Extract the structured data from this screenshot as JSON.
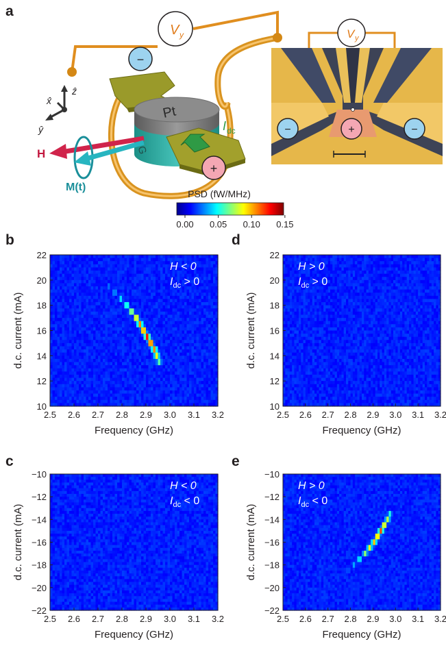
{
  "panel_labels": [
    "a",
    "b",
    "c",
    "d",
    "e"
  ],
  "schematic": {
    "voltage_label": "V",
    "voltage_subscript": "y",
    "current_label": "I",
    "current_subscript": "dc",
    "field_label": "H",
    "magnetization_label": "M(t)",
    "material_top": "Pt",
    "material_bottom": "YIG",
    "minus_sign": "−",
    "plus_sign": "+",
    "axes": [
      "x̂",
      "ẑ",
      "ŷ"
    ]
  },
  "micrograph": {
    "voltage_label": "V",
    "voltage_subscript": "y",
    "minus_sign": "−",
    "plus_sign": "+"
  },
  "colorbar": {
    "title": "PSD (fW/MHz)",
    "ticks": [
      "0.00",
      "0.05",
      "0.10",
      "0.15"
    ],
    "range": [
      0,
      0.15
    ],
    "colormap": "jet"
  },
  "chart_data": [
    {
      "id": "b",
      "type": "heatmap",
      "xlabel": "Frequency (GHz)",
      "ylabel": "d.c. current (mA)",
      "xlim": [
        2.5,
        3.2
      ],
      "ylim": [
        10,
        22
      ],
      "xticks": [
        "2.5",
        "2.6",
        "2.7",
        "2.8",
        "2.9",
        "3.0",
        "3.1",
        "3.2"
      ],
      "yticks": [
        "10",
        "12",
        "14",
        "16",
        "18",
        "20",
        "22"
      ],
      "condition_h": "H < 0",
      "condition_i": "I",
      "condition_i_sub": "dc",
      "condition_i_rel": " > 0",
      "ridge": {
        "current": [
          13.5,
          14.0,
          14.5,
          15.0,
          15.5,
          16.0,
          16.5,
          17.0,
          17.5,
          18.0,
          18.5,
          19.0,
          19.5,
          20.0,
          20.5
        ],
        "frequency": [
          2.955,
          2.945,
          2.935,
          2.92,
          2.905,
          2.89,
          2.875,
          2.86,
          2.84,
          2.82,
          2.795,
          2.77,
          2.745,
          2.72,
          2.69
        ],
        "psd": [
          0.08,
          0.11,
          0.13,
          0.15,
          0.15,
          0.14,
          0.13,
          0.12,
          0.1,
          0.08,
          0.06,
          0.05,
          0.04,
          0.03,
          0.02
        ]
      }
    },
    {
      "id": "c",
      "type": "heatmap",
      "xlabel": "Frequency (GHz)",
      "ylabel": "d.c. current (mA)",
      "xlim": [
        2.5,
        3.2
      ],
      "ylim": [
        -22,
        -10
      ],
      "xticks": [
        "2.5",
        "2.6",
        "2.7",
        "2.8",
        "2.9",
        "3.0",
        "3.1",
        "3.2"
      ],
      "yticks": [
        "−22",
        "−20",
        "−18",
        "−16",
        "−14",
        "−12",
        "−10"
      ],
      "condition_h": "H < 0",
      "condition_i": "I",
      "condition_i_sub": "dc",
      "condition_i_rel": " < 0",
      "ridge": {
        "current": [],
        "frequency": [],
        "psd": []
      }
    },
    {
      "id": "d",
      "type": "heatmap",
      "xlabel": "Frequency (GHz)",
      "ylabel": "d.c. current (mA)",
      "xlim": [
        2.5,
        3.2
      ],
      "ylim": [
        10,
        22
      ],
      "xticks": [
        "2.5",
        "2.6",
        "2.7",
        "2.8",
        "2.9",
        "3.0",
        "3.1",
        "3.2"
      ],
      "yticks": [
        "10",
        "12",
        "14",
        "16",
        "18",
        "20",
        "22"
      ],
      "condition_h": "H > 0",
      "condition_i": "I",
      "condition_i_sub": "dc",
      "condition_i_rel": " > 0",
      "ridge": {
        "current": [],
        "frequency": [],
        "psd": []
      }
    },
    {
      "id": "e",
      "type": "heatmap",
      "xlabel": "Frequency (GHz)",
      "ylabel": "d.c. current (mA)",
      "xlim": [
        2.5,
        3.2
      ],
      "ylim": [
        -22,
        -10
      ],
      "xticks": [
        "2.5",
        "2.6",
        "2.7",
        "2.8",
        "2.9",
        "3.0",
        "3.1",
        "3.2"
      ],
      "yticks": [
        "−22",
        "−20",
        "−18",
        "−16",
        "−14",
        "−12",
        "−10"
      ],
      "condition_h": "H > 0",
      "condition_i": "I",
      "condition_i_sub": "dc",
      "condition_i_rel": " < 0",
      "ridge": {
        "current": [
          -13.5,
          -14.0,
          -14.5,
          -15.0,
          -15.5,
          -16.0,
          -16.5,
          -17.0,
          -17.5,
          -18.0,
          -18.5,
          -19.0
        ],
        "frequency": [
          2.975,
          2.965,
          2.95,
          2.935,
          2.92,
          2.905,
          2.885,
          2.865,
          2.84,
          2.815,
          2.79,
          2.76
        ],
        "psd": [
          0.07,
          0.1,
          0.12,
          0.14,
          0.13,
          0.12,
          0.11,
          0.09,
          0.07,
          0.05,
          0.04,
          0.03
        ]
      },
      "band": {
        "current": [
          -22,
          -19.5
        ],
        "psd": 0.025
      }
    }
  ]
}
